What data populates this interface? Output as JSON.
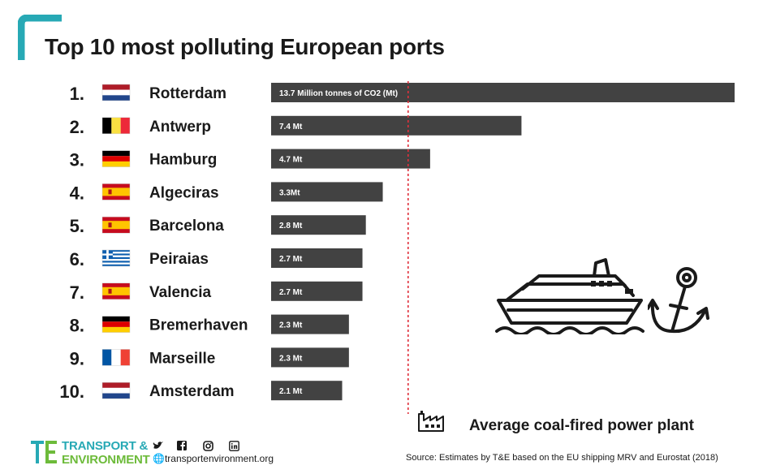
{
  "title": "Top 10 most polluting European ports",
  "chart_data": {
    "type": "bar",
    "orientation": "horizontal",
    "unit": "Million tonnes of CO2 (Mt)",
    "categories": [
      "Rotterdam",
      "Antwerp",
      "Hamburg",
      "Algeciras",
      "Barcelona",
      "Peiraias",
      "Valencia",
      "Bremerhaven",
      "Marseille",
      "Amsterdam"
    ],
    "ranks": [
      "1.",
      "2.",
      "3.",
      "4.",
      "5.",
      "6.",
      "7.",
      "8.",
      "9.",
      "10."
    ],
    "values": [
      13.7,
      7.4,
      4.7,
      3.3,
      2.8,
      2.7,
      2.7,
      2.3,
      2.3,
      2.1
    ],
    "bar_labels": [
      "13.7 Million tonnes of CO2 (Mt)",
      "7.4 Mt",
      "4.7 Mt",
      "3.3Mt",
      "2.8 Mt",
      "2.7 Mt",
      "2.7 Mt",
      "2.3 Mt",
      "2.3 Mt",
      "2.1 Mt"
    ],
    "flags": [
      "netherlands",
      "belgium",
      "germany",
      "spain",
      "spain",
      "greece",
      "spain",
      "germany",
      "france",
      "netherlands"
    ],
    "reference_line": {
      "label": "Average coal-fired power plant",
      "value": 4.05,
      "style": "dashed",
      "color": "#e0303b"
    },
    "bar_color": "#424242",
    "grid": false,
    "xlim": [
      0,
      13.7
    ]
  },
  "legend": {
    "label": "Average coal-fired power plant",
    "icon": "factory-icon"
  },
  "illustration": {
    "icons": [
      "ship-icon",
      "anchor-icon"
    ]
  },
  "footer": {
    "brand_line1": "TRANSPORT &",
    "brand_line2": "ENVIRONMENT",
    "social_icons": [
      "twitter-icon",
      "facebook-icon",
      "instagram-icon",
      "linkedin-icon"
    ],
    "website": "transportenvironment.org",
    "source": "Source: Estimates by T&E based on the EU shipping MRV and Eurostat (2018)"
  },
  "colors": {
    "accent": "#27a9b5",
    "accent2": "#6dbb3a",
    "bar": "#424242",
    "reference": "#e0303b",
    "text": "#1a1a1a"
  }
}
